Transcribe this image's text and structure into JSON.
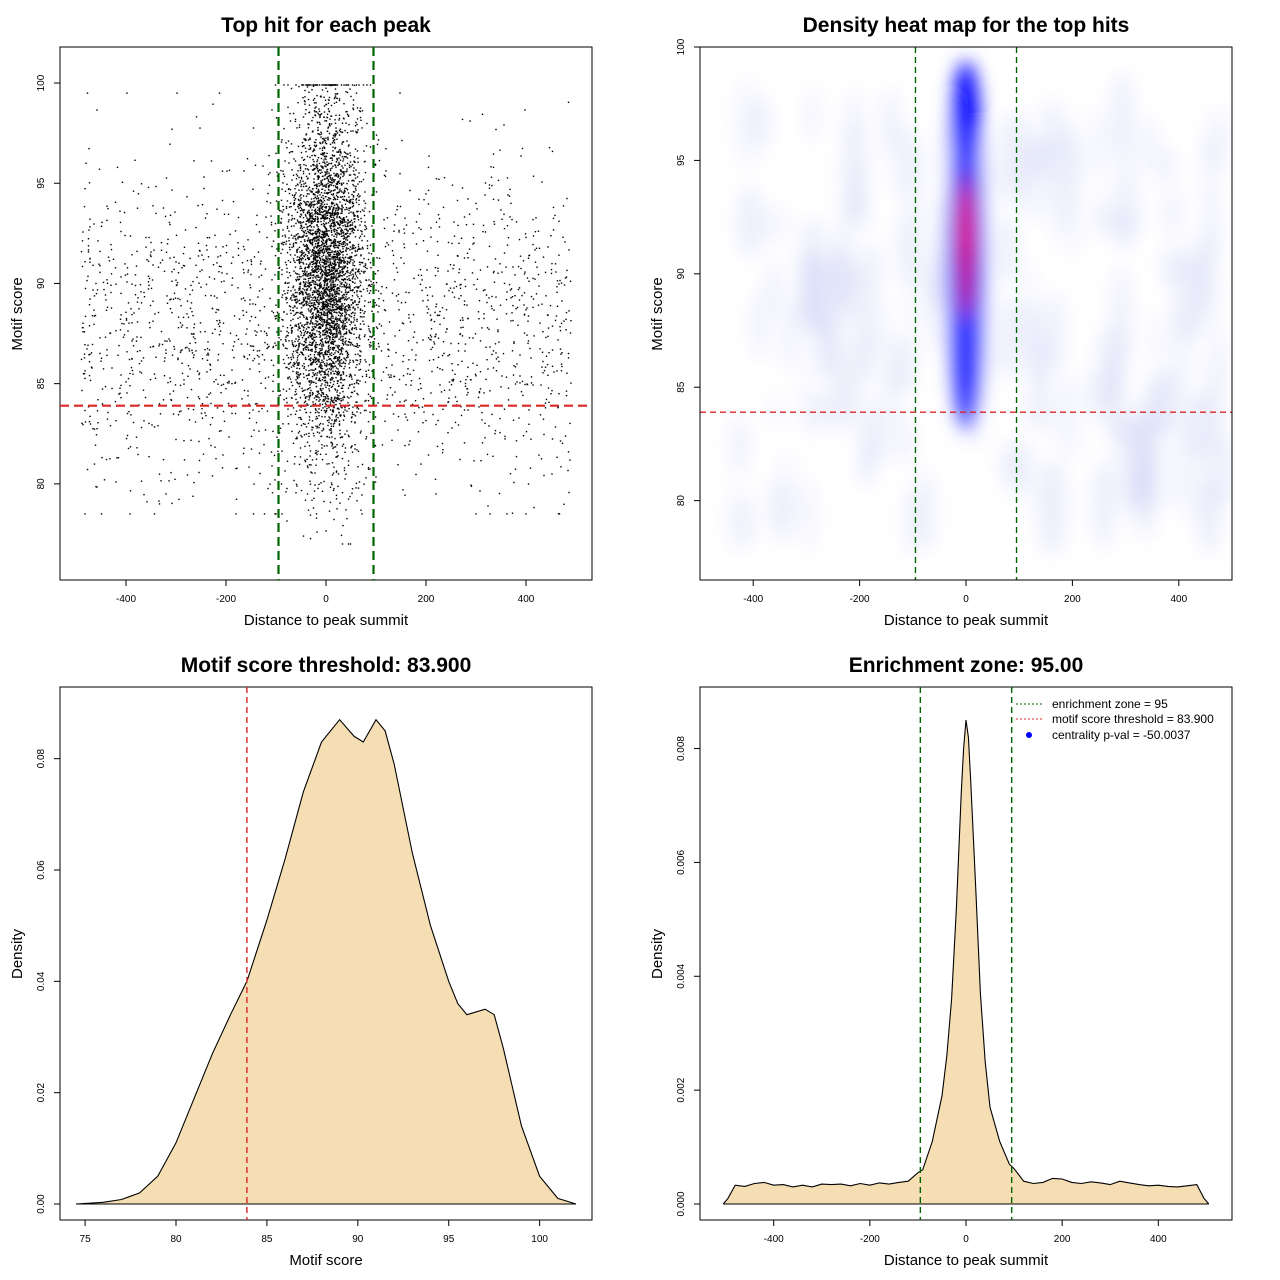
{
  "chart_data": [
    {
      "type": "scatter",
      "title": "Top hit for each peak",
      "xlabel": "Distance to peak summit",
      "ylabel": "Motif score",
      "xlim": [
        -500,
        500
      ],
      "ylim": [
        76,
        101
      ],
      "xticks": [
        -400,
        -200,
        0,
        200,
        400
      ],
      "yticks": [
        80,
        85,
        90,
        95,
        100
      ],
      "reference_lines": [
        {
          "orientation": "vertical",
          "value": -95,
          "color": "#006400",
          "style": "dashed"
        },
        {
          "orientation": "vertical",
          "value": 95,
          "color": "#006400",
          "style": "dashed"
        },
        {
          "orientation": "horizontal",
          "value": 83.9,
          "color": "#dc2626",
          "style": "dashed"
        }
      ],
      "point_color": "#000000",
      "distribution": {
        "central_points": 4200,
        "central_x_sd": 38,
        "central_y_mean": 90.5,
        "central_y_sd": 4.3,
        "background_points": 1900,
        "background_y_mean": 88,
        "background_y_sd": 4.2,
        "seed": 7
      }
    },
    {
      "type": "heatmap",
      "title": "Density heat map for the top hits",
      "xlabel": "Distance to peak summit",
      "ylabel": "Motif score",
      "xlim": [
        -500,
        500
      ],
      "ylim": [
        76.5,
        100
      ],
      "xticks": [
        -400,
        -200,
        0,
        200,
        400
      ],
      "yticks": [
        80,
        85,
        90,
        95,
        100
      ],
      "colors": [
        "#ffffff",
        "#0000ff",
        "#ff0000"
      ],
      "peak": {
        "x": 0,
        "y": 91.5
      },
      "reference_lines": [
        {
          "orientation": "vertical",
          "value": -95,
          "color": "#006400",
          "style": "dashed"
        },
        {
          "orientation": "vertical",
          "value": 95,
          "color": "#006400",
          "style": "dashed"
        },
        {
          "orientation": "horizontal",
          "value": 83.9,
          "color": "#dc2626",
          "style": "dashed"
        }
      ]
    },
    {
      "type": "area",
      "title": "Motif score threshold: 83.900",
      "xlabel": "Motif score",
      "ylabel": "Density",
      "xlim": [
        74.5,
        102
      ],
      "ylim": [
        0,
        0.09
      ],
      "xticks": [
        75,
        80,
        85,
        90,
        95,
        100
      ],
      "yticks": [
        0.0,
        0.02,
        0.04,
        0.06,
        0.08
      ],
      "ytick_labels": [
        "0.00",
        "0.02",
        "0.04",
        "0.06",
        "0.08"
      ],
      "fill": "#f5deb3",
      "x": [
        74.5,
        76,
        77,
        78,
        79,
        80,
        81,
        82,
        83,
        83.9,
        85,
        86,
        87,
        88,
        89,
        89.8,
        90.3,
        91,
        91.5,
        92,
        92.5,
        93,
        94,
        95,
        95.5,
        96,
        97,
        97.5,
        98,
        99,
        100,
        101,
        102
      ],
      "y": [
        0.0,
        0.0003,
        0.0008,
        0.002,
        0.005,
        0.011,
        0.019,
        0.027,
        0.034,
        0.04,
        0.051,
        0.062,
        0.074,
        0.083,
        0.087,
        0.084,
        0.083,
        0.087,
        0.085,
        0.079,
        0.071,
        0.063,
        0.05,
        0.04,
        0.036,
        0.034,
        0.035,
        0.034,
        0.028,
        0.014,
        0.005,
        0.001,
        0.0
      ],
      "reference_lines": [
        {
          "orientation": "vertical",
          "value": 83.9,
          "color": "#dc2626",
          "style": "dashed"
        }
      ]
    },
    {
      "type": "area",
      "title": "Enrichment zone: 95.00",
      "xlabel": "Distance to peak summit",
      "ylabel": "Density",
      "xlim": [
        -520,
        520
      ],
      "ylim": [
        0,
        0.0088
      ],
      "xticks": [
        -400,
        -200,
        0,
        200,
        400
      ],
      "yticks": [
        0.0,
        0.002,
        0.004,
        0.006,
        0.008
      ],
      "ytick_labels": [
        "0.000",
        "0.002",
        "0.004",
        "0.006",
        "0.008"
      ],
      "fill": "#f5deb3",
      "x": [
        -505,
        -495,
        -480,
        -460,
        -440,
        -420,
        -400,
        -380,
        -360,
        -340,
        -320,
        -300,
        -280,
        -260,
        -240,
        -220,
        -200,
        -180,
        -160,
        -140,
        -120,
        -100,
        -90,
        -70,
        -50,
        -40,
        -30,
        -20,
        -10,
        -5,
        0,
        5,
        10,
        20,
        30,
        40,
        50,
        70,
        90,
        100,
        120,
        140,
        160,
        180,
        200,
        220,
        240,
        260,
        280,
        300,
        320,
        340,
        360,
        380,
        400,
        420,
        440,
        460,
        480,
        495,
        505
      ],
      "y": [
        0.0,
        0.0001,
        0.00033,
        0.00031,
        0.00036,
        0.00038,
        0.00033,
        0.00034,
        0.0003,
        0.00033,
        0.0003,
        0.00035,
        0.00034,
        0.00035,
        0.00032,
        0.00036,
        0.00033,
        0.00037,
        0.00035,
        0.00038,
        0.0004,
        0.00055,
        0.0006,
        0.0011,
        0.0019,
        0.0026,
        0.0036,
        0.0052,
        0.0072,
        0.008,
        0.0085,
        0.0082,
        0.0074,
        0.0056,
        0.0037,
        0.0025,
        0.0017,
        0.0011,
        0.0007,
        0.00062,
        0.0004,
        0.00036,
        0.00038,
        0.00045,
        0.00044,
        0.00038,
        0.00036,
        0.00039,
        0.00037,
        0.00034,
        0.0004,
        0.00037,
        0.00034,
        0.00032,
        0.00033,
        0.00031,
        0.0003,
        0.00032,
        0.00034,
        0.0001,
        0.0
      ],
      "reference_lines": [
        {
          "orientation": "vertical",
          "value": -95,
          "color": "#006400",
          "style": "dashed"
        },
        {
          "orientation": "vertical",
          "value": 95,
          "color": "#006400",
          "style": "dashed"
        }
      ],
      "legend": {
        "placement": "top-right",
        "entries": [
          {
            "label": "enrichment zone = 95",
            "color": "#006400",
            "symbol": "dotted-line"
          },
          {
            "label": "motif score threshold = 83.900",
            "color": "#dc2626",
            "symbol": "dotted-line"
          },
          {
            "label": "centrality p-val = -50.0037",
            "color": "#0000ff",
            "symbol": "dot"
          }
        ]
      }
    }
  ]
}
